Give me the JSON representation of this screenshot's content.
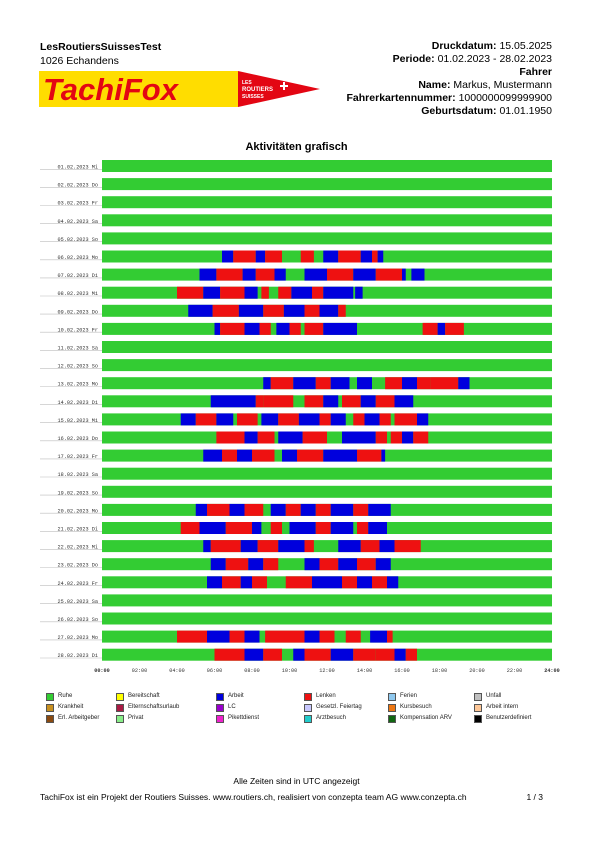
{
  "header": {
    "company": "LesRoutiersSuissesTest",
    "address": "1026 Echandens",
    "print_date_label": "Druckdatum:",
    "print_date": "15.05.2025",
    "period_label": "Periode:",
    "period": "01.02.2023 - 28.02.2023",
    "driver_heading": "Fahrer",
    "name_label": "Name:",
    "name": "Markus, Mustermann",
    "card_label": "Fahrerkartennummer:",
    "card_number": "1000000099999900",
    "birth_label": "Geburtsdatum:",
    "birth_date": "01.01.1950"
  },
  "logo": {
    "wordmark": "TachiFox",
    "badge_line1": "LES",
    "badge_line2": "ROUTIERS",
    "badge_line3": "SUISSES"
  },
  "chart_title": "Aktivitäten grafisch",
  "colors": {
    "rest": "#33cc33",
    "drive": "#ee1111",
    "work": "#0000dd",
    "grid": "#bdbdbd"
  },
  "chart_data": {
    "type": "gantt",
    "x_ticks": [
      "00:00",
      "02:00",
      "04:00",
      "06:00",
      "08:00",
      "10:00",
      "12:00",
      "14:00",
      "16:00",
      "18:00",
      "20:00",
      "22:00",
      "24:00"
    ],
    "xlim": [
      0,
      24
    ],
    "days": [
      {
        "label": "01.02.2023 Mi",
        "blocks": []
      },
      {
        "label": "02.02.2023 Do",
        "blocks": []
      },
      {
        "label": "03.02.2023 Fr",
        "blocks": []
      },
      {
        "label": "04.02.2023 Sa",
        "blocks": []
      },
      {
        "label": "05.02.2023 So",
        "blocks": []
      },
      {
        "label": "06.02.2023 Mo",
        "blocks": [
          [
            6.4,
            7.0,
            "work"
          ],
          [
            7.0,
            8.2,
            "drive"
          ],
          [
            8.2,
            8.7,
            "work"
          ],
          [
            8.7,
            9.6,
            "drive"
          ],
          [
            10.6,
            11.3,
            "drive"
          ],
          [
            11.8,
            12.6,
            "work"
          ],
          [
            12.6,
            13.8,
            "drive"
          ],
          [
            13.8,
            14.4,
            "work"
          ],
          [
            14.4,
            14.7,
            "drive"
          ],
          [
            14.7,
            15.0,
            "work"
          ]
        ]
      },
      {
        "label": "07.02.2023 Di",
        "blocks": [
          [
            5.2,
            6.1,
            "work"
          ],
          [
            6.1,
            7.5,
            "drive"
          ],
          [
            7.5,
            8.2,
            "work"
          ],
          [
            8.2,
            9.2,
            "drive"
          ],
          [
            9.2,
            9.8,
            "work"
          ],
          [
            10.8,
            12.0,
            "work"
          ],
          [
            12.0,
            13.4,
            "drive"
          ],
          [
            13.4,
            14.6,
            "work"
          ],
          [
            14.6,
            16.0,
            "drive"
          ],
          [
            16.0,
            16.2,
            "work"
          ],
          [
            16.5,
            17.2,
            "work"
          ]
        ]
      },
      {
        "label": "08.02.2023 Mi",
        "blocks": [
          [
            4.0,
            5.4,
            "drive"
          ],
          [
            5.4,
            6.3,
            "work"
          ],
          [
            6.3,
            7.6,
            "drive"
          ],
          [
            7.6,
            8.3,
            "work"
          ],
          [
            8.5,
            8.9,
            "drive"
          ],
          [
            9.4,
            10.1,
            "drive"
          ],
          [
            10.1,
            11.2,
            "work"
          ],
          [
            11.2,
            11.8,
            "drive"
          ],
          [
            11.8,
            13.4,
            "work"
          ],
          [
            13.5,
            13.9,
            "work"
          ]
        ]
      },
      {
        "label": "09.02.2023 Do",
        "blocks": [
          [
            4.6,
            5.9,
            "work"
          ],
          [
            5.9,
            7.3,
            "drive"
          ],
          [
            7.3,
            8.6,
            "work"
          ],
          [
            8.6,
            9.7,
            "drive"
          ],
          [
            9.7,
            10.8,
            "work"
          ],
          [
            10.8,
            11.6,
            "drive"
          ],
          [
            11.6,
            12.6,
            "work"
          ],
          [
            12.6,
            13.0,
            "drive"
          ]
        ]
      },
      {
        "label": "10.02.2023 Fr",
        "blocks": [
          [
            6.0,
            6.3,
            "work"
          ],
          [
            6.3,
            7.6,
            "drive"
          ],
          [
            7.6,
            8.4,
            "work"
          ],
          [
            8.4,
            9.0,
            "drive"
          ],
          [
            9.3,
            10.0,
            "work"
          ],
          [
            10.0,
            10.6,
            "drive"
          ],
          [
            10.8,
            11.8,
            "drive"
          ],
          [
            11.8,
            13.6,
            "work"
          ],
          [
            17.1,
            17.9,
            "drive"
          ],
          [
            17.9,
            18.3,
            "work"
          ],
          [
            18.3,
            19.3,
            "drive"
          ]
        ]
      },
      {
        "label": "11.02.2023 Sa",
        "blocks": []
      },
      {
        "label": "12.02.2023 So",
        "blocks": []
      },
      {
        "label": "13.02.2023 Mo",
        "blocks": [
          [
            8.6,
            9.0,
            "work"
          ],
          [
            9.0,
            10.2,
            "drive"
          ],
          [
            10.2,
            11.4,
            "work"
          ],
          [
            11.4,
            12.2,
            "drive"
          ],
          [
            12.2,
            13.2,
            "work"
          ],
          [
            13.6,
            14.4,
            "work"
          ],
          [
            15.1,
            16.0,
            "drive"
          ],
          [
            16.0,
            16.8,
            "work"
          ],
          [
            16.8,
            17.5,
            "drive"
          ],
          [
            17.5,
            19.0,
            "drive"
          ],
          [
            19.0,
            19.6,
            "work"
          ]
        ]
      },
      {
        "label": "14.02.2023 Di",
        "blocks": [
          [
            5.8,
            8.2,
            "work"
          ],
          [
            8.2,
            8.6,
            "drive"
          ],
          [
            8.6,
            10.2,
            "drive"
          ],
          [
            10.8,
            11.8,
            "drive"
          ],
          [
            11.8,
            12.6,
            "work"
          ],
          [
            12.8,
            13.8,
            "drive"
          ],
          [
            13.8,
            14.6,
            "work"
          ],
          [
            14.6,
            15.6,
            "drive"
          ],
          [
            15.6,
            16.6,
            "work"
          ]
        ]
      },
      {
        "label": "15.02.2023 Mi",
        "blocks": [
          [
            4.2,
            5.0,
            "work"
          ],
          [
            5.0,
            6.1,
            "drive"
          ],
          [
            6.1,
            7.0,
            "work"
          ],
          [
            7.2,
            8.3,
            "drive"
          ],
          [
            8.5,
            9.4,
            "work"
          ],
          [
            9.4,
            10.5,
            "drive"
          ],
          [
            10.5,
            11.6,
            "work"
          ],
          [
            11.6,
            12.2,
            "drive"
          ],
          [
            12.2,
            13.0,
            "work"
          ],
          [
            13.4,
            14.0,
            "drive"
          ],
          [
            14.0,
            14.8,
            "work"
          ],
          [
            14.8,
            15.4,
            "drive"
          ],
          [
            15.6,
            16.8,
            "drive"
          ],
          [
            16.8,
            17.4,
            "work"
          ]
        ]
      },
      {
        "label": "16.02.2023 Do",
        "blocks": [
          [
            6.1,
            7.6,
            "drive"
          ],
          [
            7.6,
            8.3,
            "work"
          ],
          [
            8.3,
            9.2,
            "drive"
          ],
          [
            9.4,
            10.7,
            "work"
          ],
          [
            10.7,
            12.0,
            "drive"
          ],
          [
            12.8,
            14.6,
            "work"
          ],
          [
            14.6,
            15.2,
            "drive"
          ],
          [
            15.4,
            16.0,
            "drive"
          ],
          [
            16.0,
            16.6,
            "work"
          ],
          [
            16.6,
            17.4,
            "drive"
          ]
        ]
      },
      {
        "label": "17.02.2023 Fr",
        "blocks": [
          [
            5.4,
            6.4,
            "work"
          ],
          [
            6.4,
            7.2,
            "drive"
          ],
          [
            7.2,
            8.0,
            "work"
          ],
          [
            8.0,
            9.2,
            "drive"
          ],
          [
            9.6,
            10.4,
            "work"
          ],
          [
            10.4,
            11.8,
            "drive"
          ],
          [
            11.8,
            13.6,
            "work"
          ],
          [
            13.6,
            14.9,
            "drive"
          ],
          [
            14.9,
            15.1,
            "work"
          ]
        ]
      },
      {
        "label": "18.02.2023 Sa",
        "blocks": []
      },
      {
        "label": "19.02.2023 So",
        "blocks": []
      },
      {
        "label": "20.02.2023 Mo",
        "blocks": [
          [
            5.0,
            5.6,
            "work"
          ],
          [
            5.6,
            6.8,
            "drive"
          ],
          [
            6.8,
            7.6,
            "work"
          ],
          [
            7.6,
            8.6,
            "drive"
          ],
          [
            9.0,
            9.8,
            "work"
          ],
          [
            9.8,
            10.6,
            "drive"
          ],
          [
            10.6,
            11.4,
            "work"
          ],
          [
            11.4,
            12.2,
            "drive"
          ],
          [
            12.2,
            13.4,
            "work"
          ],
          [
            13.4,
            14.2,
            "drive"
          ],
          [
            14.2,
            15.4,
            "work"
          ]
        ]
      },
      {
        "label": "21.02.2023 Di",
        "blocks": [
          [
            4.2,
            5.2,
            "drive"
          ],
          [
            5.2,
            6.6,
            "work"
          ],
          [
            6.6,
            8.0,
            "drive"
          ],
          [
            8.0,
            8.5,
            "work"
          ],
          [
            9.0,
            9.6,
            "drive"
          ],
          [
            10.0,
            11.4,
            "work"
          ],
          [
            11.4,
            12.2,
            "drive"
          ],
          [
            12.2,
            13.4,
            "work"
          ],
          [
            13.6,
            14.2,
            "drive"
          ],
          [
            14.2,
            15.2,
            "work"
          ]
        ]
      },
      {
        "label": "22.02.2023 Mi",
        "blocks": [
          [
            5.4,
            5.8,
            "work"
          ],
          [
            5.8,
            7.4,
            "drive"
          ],
          [
            7.4,
            8.3,
            "work"
          ],
          [
            8.3,
            9.4,
            "drive"
          ],
          [
            9.4,
            10.8,
            "work"
          ],
          [
            10.8,
            11.3,
            "drive"
          ],
          [
            12.6,
            13.8,
            "work"
          ],
          [
            13.8,
            14.8,
            "drive"
          ],
          [
            14.8,
            15.6,
            "work"
          ],
          [
            15.6,
            17.0,
            "drive"
          ]
        ]
      },
      {
        "label": "23.02.2023 Do",
        "blocks": [
          [
            5.8,
            6.6,
            "work"
          ],
          [
            6.6,
            7.8,
            "drive"
          ],
          [
            7.8,
            8.6,
            "work"
          ],
          [
            8.6,
            9.4,
            "drive"
          ],
          [
            10.8,
            11.6,
            "work"
          ],
          [
            11.6,
            12.6,
            "drive"
          ],
          [
            12.6,
            13.6,
            "work"
          ],
          [
            13.6,
            14.6,
            "drive"
          ],
          [
            14.6,
            15.4,
            "work"
          ]
        ]
      },
      {
        "label": "24.02.2023 Fr",
        "blocks": [
          [
            5.6,
            6.4,
            "work"
          ],
          [
            6.4,
            7.4,
            "drive"
          ],
          [
            7.4,
            8.0,
            "work"
          ],
          [
            8.0,
            8.8,
            "drive"
          ],
          [
            9.8,
            11.2,
            "drive"
          ],
          [
            11.2,
            12.8,
            "work"
          ],
          [
            12.8,
            13.6,
            "drive"
          ],
          [
            13.6,
            14.4,
            "work"
          ],
          [
            14.4,
            15.2,
            "drive"
          ],
          [
            15.2,
            15.8,
            "work"
          ]
        ]
      },
      {
        "label": "25.02.2023 Sa",
        "blocks": []
      },
      {
        "label": "26.02.2023 So",
        "blocks": []
      },
      {
        "label": "27.02.2023 Mo",
        "blocks": [
          [
            4.0,
            5.6,
            "drive"
          ],
          [
            5.6,
            6.8,
            "work"
          ],
          [
            6.8,
            7.6,
            "drive"
          ],
          [
            7.6,
            8.4,
            "work"
          ],
          [
            8.7,
            10.8,
            "drive"
          ],
          [
            10.8,
            11.6,
            "work"
          ],
          [
            11.6,
            12.4,
            "drive"
          ],
          [
            13.0,
            13.8,
            "drive"
          ],
          [
            14.3,
            15.2,
            "work"
          ],
          [
            15.2,
            15.5,
            "drive"
          ]
        ]
      },
      {
        "label": "28.02.2023 Di",
        "blocks": [
          [
            6.0,
            7.6,
            "drive"
          ],
          [
            7.6,
            8.6,
            "work"
          ],
          [
            8.6,
            9.6,
            "drive"
          ],
          [
            10.2,
            10.8,
            "work"
          ],
          [
            10.8,
            12.2,
            "drive"
          ],
          [
            12.2,
            13.4,
            "work"
          ],
          [
            13.4,
            14.6,
            "drive"
          ],
          [
            14.6,
            15.6,
            "drive"
          ],
          [
            15.6,
            16.2,
            "work"
          ],
          [
            16.2,
            16.8,
            "drive"
          ]
        ]
      }
    ]
  },
  "legend": [
    {
      "label": "Ruhe",
      "color": "#33cc33"
    },
    {
      "label": "Bereitschaft",
      "color": "#ffff00"
    },
    {
      "label": "Arbeit",
      "color": "#0000dd"
    },
    {
      "label": "Lenken",
      "color": "#ee1111"
    },
    {
      "label": "Ferien",
      "color": "#8fc8ee"
    },
    {
      "label": "Unfall",
      "color": "#c0c0c0"
    },
    {
      "label": "Krankheit",
      "color": "#c89020"
    },
    {
      "label": "Elternschaftsurlaub",
      "color": "#aa1a44"
    },
    {
      "label": "LC",
      "color": "#9900cc"
    },
    {
      "label": "Gesetzl. Feiertag",
      "color": "#c8c8ff"
    },
    {
      "label": "Kursbesuch",
      "color": "#ee7711"
    },
    {
      "label": "Arbeit intern",
      "color": "#ffc898"
    },
    {
      "label": "Erl. Arbeitgeber",
      "color": "#8a4a10"
    },
    {
      "label": "Privat",
      "color": "#88ee88"
    },
    {
      "label": "Pikettdienst",
      "color": "#ee22cc"
    },
    {
      "label": "Arztbesuch",
      "color": "#22cccc"
    },
    {
      "label": "Kompensation ARV",
      "color": "#116611"
    },
    {
      "label": "Benutzerdefiniert",
      "color": "#000000"
    }
  ],
  "footer": {
    "note": "Alle Zeiten sind in UTC angezeigt",
    "credit": "TachiFox ist ein Projekt der Routiers Suisses. www.routiers.ch, realisiert von conzepta team AG www.conzepta.ch",
    "page": "1 / 3"
  }
}
